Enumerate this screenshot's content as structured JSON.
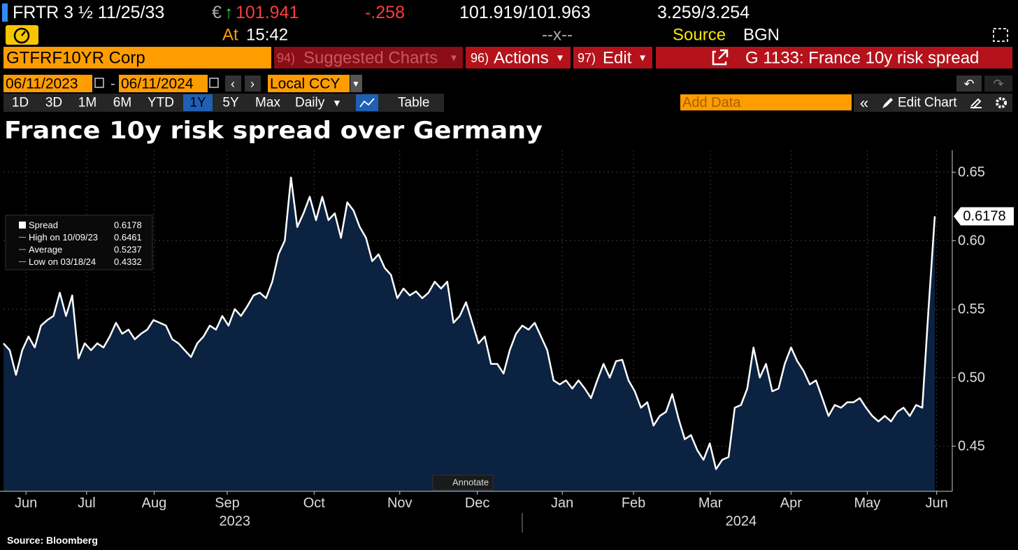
{
  "header": {
    "ticker": "FRTR 3 ½ 11/25/33",
    "currency": "€",
    "price": "101.941",
    "change": "-.258",
    "bid_ask": "101.919/101.963",
    "yields": "3.259/3.254",
    "time_label": "At",
    "time": "15:42",
    "separator": "--x--",
    "source_label": "Source",
    "source": "BGN"
  },
  "menu": {
    "security": "GTFRF10YR Corp",
    "items": [
      {
        "number": "94)",
        "label": "Suggested Charts"
      },
      {
        "number": "96)",
        "label": "Actions"
      },
      {
        "number": "97)",
        "label": "Edit"
      }
    ],
    "chart_name": "G 1133: France 10y risk spread"
  },
  "controls": {
    "start_date": "06/11/2023",
    "date_separator": "-",
    "end_date": "06/11/2024",
    "currency": "Local CCY",
    "periods": [
      "1D",
      "3D",
      "1M",
      "6M",
      "YTD",
      "1Y",
      "5Y",
      "Max"
    ],
    "selected_period": "1Y",
    "frequency": "Daily",
    "table": "Table",
    "add_data": "Add Data",
    "edit_chart": "Edit Chart"
  },
  "chart_data": {
    "type": "area",
    "title": "France 10y risk spread over Germany",
    "series": [
      {
        "name": "Spread",
        "color": "#ffffff",
        "fill": "#0b2240",
        "values": [
          0.525,
          0.52,
          0.502,
          0.52,
          0.53,
          0.522,
          0.538,
          0.542,
          0.545,
          0.562,
          0.545,
          0.56,
          0.514,
          0.525,
          0.52,
          0.525,
          0.522,
          0.53,
          0.54,
          0.532,
          0.535,
          0.528,
          0.532,
          0.535,
          0.542,
          0.54,
          0.538,
          0.528,
          0.525,
          0.52,
          0.515,
          0.525,
          0.53,
          0.538,
          0.535,
          0.545,
          0.538,
          0.55,
          0.545,
          0.552,
          0.56,
          0.562,
          0.558,
          0.57,
          0.59,
          0.6,
          0.6461,
          0.61,
          0.62,
          0.632,
          0.615,
          0.632,
          0.615,
          0.62,
          0.602,
          0.628,
          0.622,
          0.61,
          0.602,
          0.585,
          0.59,
          0.58,
          0.575,
          0.558,
          0.565,
          0.56,
          0.563,
          0.558,
          0.562,
          0.57,
          0.565,
          0.57,
          0.54,
          0.545,
          0.555,
          0.54,
          0.525,
          0.53,
          0.51,
          0.51,
          0.503,
          0.52,
          0.532,
          0.538,
          0.535,
          0.54,
          0.53,
          0.52,
          0.498,
          0.495,
          0.498,
          0.492,
          0.498,
          0.492,
          0.485,
          0.498,
          0.51,
          0.5,
          0.512,
          0.513,
          0.498,
          0.49,
          0.478,
          0.482,
          0.465,
          0.472,
          0.475,
          0.488,
          0.47,
          0.455,
          0.458,
          0.447,
          0.44,
          0.452,
          0.4332,
          0.44,
          0.442,
          0.478,
          0.48,
          0.492,
          0.522,
          0.5,
          0.51,
          0.49,
          0.492,
          0.51,
          0.522,
          0.512,
          0.505,
          0.495,
          0.498,
          0.485,
          0.472,
          0.48,
          0.478,
          0.482,
          0.482,
          0.485,
          0.478,
          0.472,
          0.468,
          0.472,
          0.468,
          0.475,
          0.478,
          0.472,
          0.48,
          0.478,
          0.55,
          0.6178
        ]
      }
    ],
    "xlim": [
      0,
      151.8
    ],
    "xticks": [
      {
        "value": 3.6,
        "label": "Jun"
      },
      {
        "value": 13.3,
        "label": "Jul"
      },
      {
        "value": 24.1,
        "label": "Aug"
      },
      {
        "value": 35.8,
        "label": "Sep"
      },
      {
        "value": 49.7,
        "label": "Oct"
      },
      {
        "value": 63.4,
        "label": "Nov"
      },
      {
        "value": 75.8,
        "label": "Dec"
      },
      {
        "value": 89.4,
        "label": "Jan"
      },
      {
        "value": 100.8,
        "label": "Feb"
      },
      {
        "value": 113.1,
        "label": "Mar"
      },
      {
        "value": 126,
        "label": "Apr"
      },
      {
        "value": 138.2,
        "label": "May"
      },
      {
        "value": 149.3,
        "label": "Jun"
      }
    ],
    "years": [
      {
        "value": 37,
        "label": "2023"
      },
      {
        "value": 118,
        "label": "2024"
      }
    ],
    "ylim": [
      0.417,
      0.666
    ],
    "yticks": [
      0.45,
      {
        "value": 0.5,
        "label": "0.50"
      },
      0.55,
      {
        "value": 0.6,
        "label": "0.60"
      },
      0.65
    ],
    "grid": true,
    "legend": {
      "position": "upper left",
      "items": [
        {
          "label": "Spread",
          "value": 0.6178
        },
        {
          "label": "High on 10/09/23",
          "value": 0.6461
        },
        {
          "label": "Average",
          "value": 0.5237
        },
        {
          "label": "Low on 03/18/24",
          "value": 0.4332
        }
      ]
    },
    "annotate": "Annotate",
    "source": "Source: Bloomberg"
  }
}
